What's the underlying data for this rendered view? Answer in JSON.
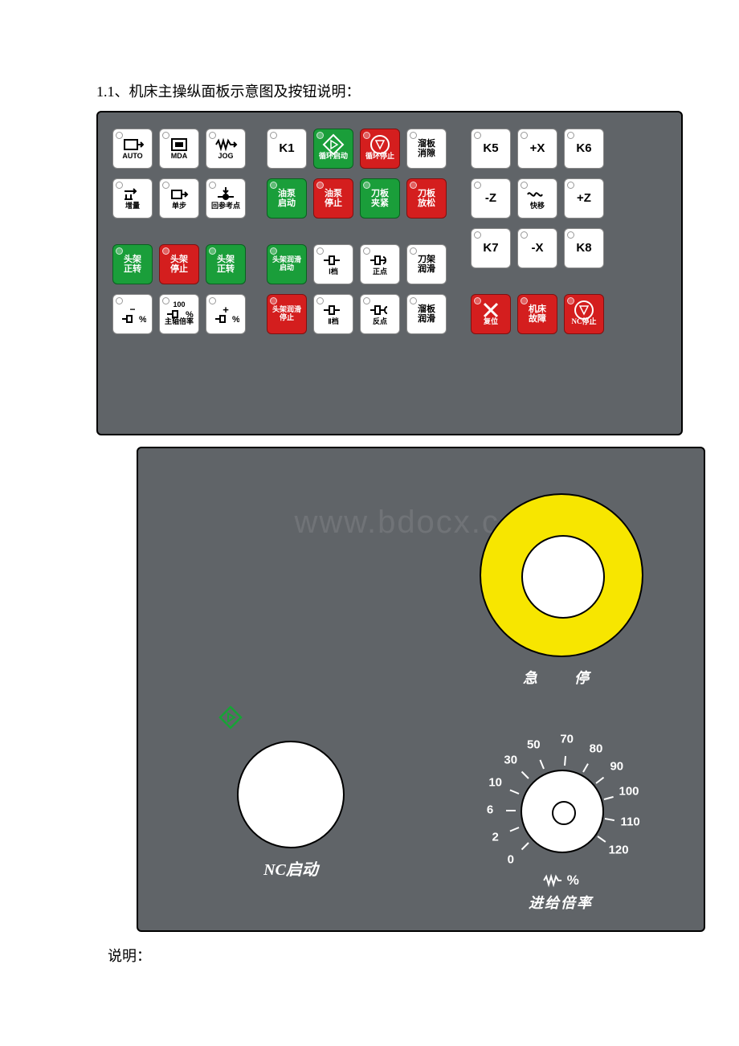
{
  "title": "1.1、机床主操纵面板示意图及按钮说明：",
  "footer": "说明：",
  "watermark": "www.bdocx.com",
  "colors": {
    "panel_bg": "#606468",
    "white_btn": "#ffffff",
    "green_btn": "#1a9e3a",
    "red_btn": "#d41e1e",
    "estop_yellow": "#f7e600",
    "text_dark": "#000000",
    "text_light": "#ffffff"
  },
  "rows": [
    [
      {
        "id": "auto",
        "color": "white",
        "icon": "auto",
        "label": "AUTO"
      },
      {
        "id": "mda",
        "color": "white",
        "icon": "mda",
        "label": "MDA"
      },
      {
        "id": "jog",
        "color": "white",
        "icon": "jog",
        "label": "JOG"
      },
      {
        "gap": "med"
      },
      {
        "id": "k1",
        "color": "white",
        "label_big": "K1"
      },
      {
        "id": "cycle-start",
        "color": "green",
        "icon": "diamond-play",
        "label": "循环启动"
      },
      {
        "id": "cycle-stop",
        "color": "red",
        "icon": "circle-tri",
        "label": "循环停止"
      },
      {
        "id": "slide-clear",
        "color": "white",
        "label2": "溜板\n消隙"
      },
      {
        "gap": "small"
      },
      {
        "id": "k5",
        "color": "white",
        "label_big": "K5"
      },
      {
        "id": "plus-x",
        "color": "white",
        "label_big": "+X"
      },
      {
        "id": "k6",
        "color": "white",
        "label_big": "K6"
      }
    ],
    [
      {
        "id": "incr",
        "color": "white",
        "icon": "incr",
        "label": "增量"
      },
      {
        "id": "step",
        "color": "white",
        "icon": "step",
        "label": "单步"
      },
      {
        "id": "ref",
        "color": "white",
        "icon": "ref",
        "label": "回参考点"
      },
      {
        "gap": "med"
      },
      {
        "id": "pump-on",
        "color": "green",
        "label2": "油泵\n启动"
      },
      {
        "id": "pump-off",
        "color": "red",
        "label2": "油泵\n停止"
      },
      {
        "id": "tool-clamp",
        "color": "green",
        "label2": "刀板\n夹紧"
      },
      {
        "id": "tool-release",
        "color": "red",
        "label2": "刀板\n放松"
      },
      {
        "gap": "small"
      },
      {
        "id": "minus-z",
        "color": "white",
        "label_big": "-Z"
      },
      {
        "id": "rapid",
        "color": "white",
        "icon": "rapid",
        "label": "快移"
      },
      {
        "id": "plus-z",
        "color": "white",
        "label_big": "+Z"
      }
    ],
    [
      {
        "blank": true
      },
      {
        "blank": true
      },
      {
        "blank": true
      },
      {
        "gap": "med"
      },
      {
        "blank": true
      },
      {
        "blank": true
      },
      {
        "blank": true
      },
      {
        "blank": true
      },
      {
        "gap": "small"
      },
      {
        "id": "k7",
        "color": "white",
        "label_big": "K7"
      },
      {
        "id": "minus-x",
        "color": "white",
        "label_big": "-X"
      },
      {
        "id": "k8",
        "color": "white",
        "label_big": "K8"
      }
    ],
    [
      {
        "id": "head-fwd",
        "color": "green",
        "label2": "头架\n正转"
      },
      {
        "id": "head-stop",
        "color": "red",
        "label2": "头架\n停止"
      },
      {
        "id": "head-fwd2",
        "color": "green",
        "label2": "头架\n正转"
      },
      {
        "gap": "med"
      },
      {
        "id": "head-lube-on",
        "color": "green",
        "label2s": "头架润滑\n启动"
      },
      {
        "id": "gear1",
        "color": "white",
        "icon": "gear1",
        "label": "Ⅰ档"
      },
      {
        "id": "pos-point",
        "color": "white",
        "icon": "pos",
        "label": "正点"
      },
      {
        "id": "tool-lube",
        "color": "white",
        "label2": "刀架\n润滑"
      }
    ],
    [
      {
        "id": "ovr-down",
        "color": "white",
        "icon": "ovr-down",
        "label": ""
      },
      {
        "id": "ovr-100",
        "color": "white",
        "icon": "ovr-100",
        "label": "主轴倍率"
      },
      {
        "id": "ovr-up",
        "color": "white",
        "icon": "ovr-up",
        "label": ""
      },
      {
        "gap": "med"
      },
      {
        "id": "head-lube-off",
        "color": "red",
        "label2s": "头架润滑\n停止"
      },
      {
        "id": "gear2",
        "color": "white",
        "icon": "gear2",
        "label": "Ⅱ档"
      },
      {
        "id": "neg-point",
        "color": "white",
        "icon": "neg",
        "label": "反点"
      },
      {
        "id": "slide-lube",
        "color": "white",
        "label2": "溜板\n润滑"
      },
      {
        "gap": "small"
      },
      {
        "id": "reset",
        "color": "red",
        "icon": "reset",
        "label": "复位"
      },
      {
        "id": "fault",
        "color": "red",
        "label2": "机床\n故障"
      },
      {
        "id": "nc-stop",
        "color": "red",
        "icon": "circle-tri",
        "label": "NC停止"
      }
    ]
  ],
  "row3_shift_up": 42,
  "bottom_panel": {
    "estop_label": "急　停",
    "nc_start_label": "NC启动",
    "feed_label": "进给倍率",
    "pct_symbol": "%",
    "dial_ticks": [
      {
        "v": "0",
        "ang": 225
      },
      {
        "v": "2",
        "ang": 202.5
      },
      {
        "v": "6",
        "ang": 180
      },
      {
        "v": "10",
        "ang": 157.5
      },
      {
        "v": "30",
        "ang": 135
      },
      {
        "v": "50",
        "ang": 112.5
      },
      {
        "v": "70",
        "ang": 85
      },
      {
        "v": "80",
        "ang": 60
      },
      {
        "v": "90",
        "ang": 37.5
      },
      {
        "v": "100",
        "ang": 15
      },
      {
        "v": "110",
        "ang": -10
      },
      {
        "v": "120",
        "ang": -35
      }
    ],
    "dial_radius_label": 88,
    "dial_radius_tick_in": 56,
    "dial_tick_len": 12
  }
}
